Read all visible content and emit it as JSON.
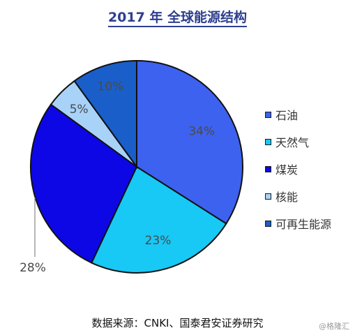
{
  "chart_data": {
    "type": "pie",
    "title": "2017 年  全球能源结构",
    "slices": [
      {
        "label": "石油",
        "value": 34,
        "display": "34%",
        "color": "#3d62ef"
      },
      {
        "label": "天然气",
        "value": 23,
        "display": "23%",
        "color": "#18c8f5"
      },
      {
        "label": "煤炭",
        "value": 28,
        "display": "28%",
        "color": "#0d07e6"
      },
      {
        "label": "核能",
        "value": 5,
        "display": "5%",
        "color": "#a8d2f8"
      },
      {
        "label": "可再生能源",
        "value": 10,
        "display": "10%",
        "color": "#1a5ec9"
      }
    ],
    "legend_position": "right"
  },
  "source": "数据来源：CNKI、国泰君安证券研究",
  "watermark": "@格隆汇"
}
